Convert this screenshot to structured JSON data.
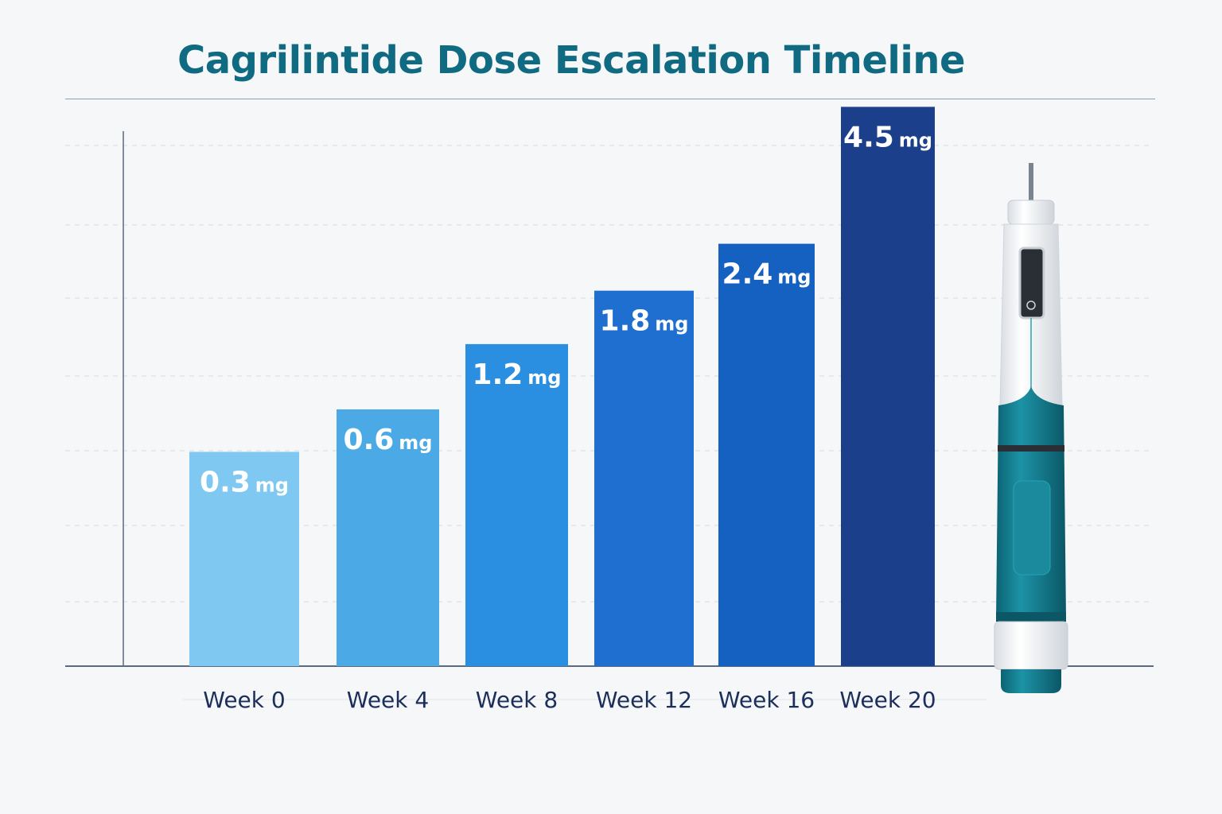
{
  "chart_data": {
    "type": "bar",
    "title": "Cagrilintide Dose Escalation Timeline",
    "categories": [
      "Week 0",
      "Week 4",
      "Week 8",
      "Week 12",
      "Week 16",
      "Week 20"
    ],
    "values": [
      0.3,
      0.6,
      1.2,
      1.8,
      2.4,
      4.5
    ],
    "value_unit": "mg",
    "data_labels": [
      "0.3",
      "0.6",
      "1.2",
      "1.8",
      "2.4",
      "4.5"
    ],
    "bar_colors": [
      "#7fc8f1",
      "#4ba9e6",
      "#2a8fe1",
      "#1f6fd1",
      "#1561c1",
      "#1b3f8b"
    ],
    "xlabel": "",
    "ylabel": "",
    "grid": true,
    "axis_scale": "non-linear (illustrative)",
    "illustration": "injection-pen"
  }
}
